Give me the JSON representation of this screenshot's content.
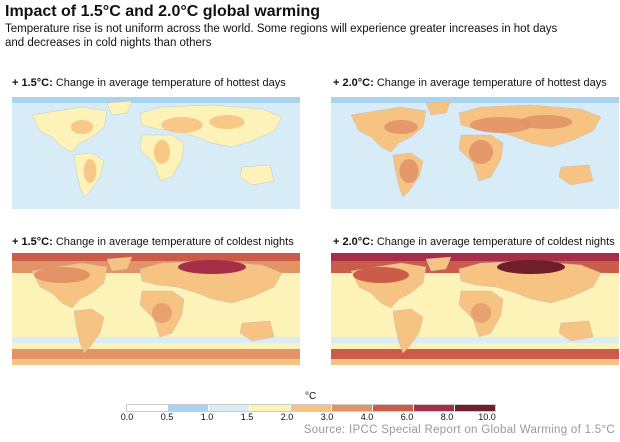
{
  "header": {
    "title": "Impact of 1.5°C and 2.0°C global warming",
    "subtitle_line1": "Temperature rise is not uniform across the world. Some regions will experience greater increases in hot days",
    "subtitle_line2": "and decreases in cold nights than others"
  },
  "panels": [
    {
      "prefix": "+ 1.5°C:",
      "text": " Change in average temperature of hottest days",
      "scenario": "1.5",
      "variable": "hottest days"
    },
    {
      "prefix": "+ 2.0°C:",
      "text": " Change in average temperature of hottest days",
      "scenario": "2.0",
      "variable": "hottest days"
    },
    {
      "prefix": "+ 1.5°C:",
      "text": " Change in average temperature of coldest nights",
      "scenario": "1.5",
      "variable": "coldest nights"
    },
    {
      "prefix": "+ 2.0°C:",
      "text": " Change in average temperature of coldest nights",
      "scenario": "2.0",
      "variable": "coldest nights"
    }
  ],
  "legend": {
    "unit": "°C",
    "ticks": [
      "0.0",
      "0.5",
      "1.0",
      "1.5",
      "2.0",
      "3.0",
      "4.0",
      "6.0",
      "8.0",
      "10.0"
    ],
    "colors": [
      "#ffffff",
      "#a8d4ef",
      "#d8ecf8",
      "#fdf3b8",
      "#f6c383",
      "#e39467",
      "#cc5c4a",
      "#a52f48",
      "#6e1f2a"
    ]
  },
  "source": "Source: IPCC Special Report on Global Warming of 1.5°C"
}
